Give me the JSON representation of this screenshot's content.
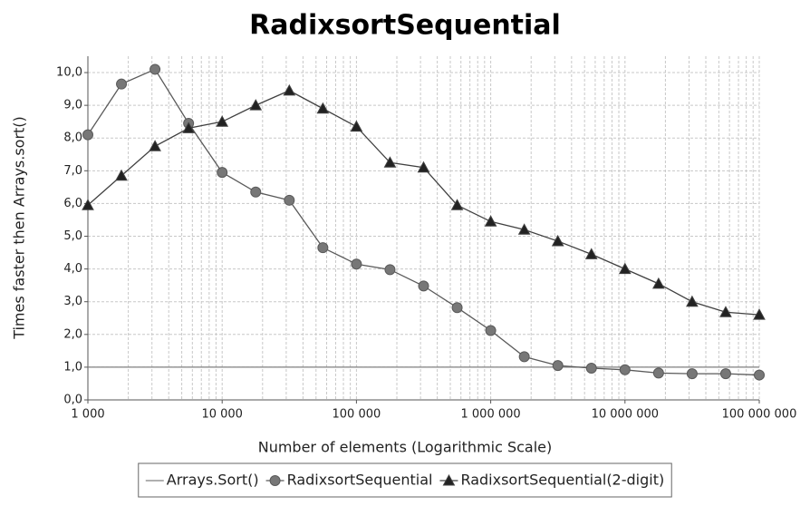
{
  "chart_data": {
    "type": "line",
    "title": "RadixsortSequential",
    "xlabel": "Number of elements (Logarithmic Scale)",
    "ylabel": "Times faster then Arrays.sort()",
    "xscale": "log",
    "grid": true,
    "legend": "bottom",
    "x": [
      1000,
      1778,
      3162,
      5623,
      10000,
      17783,
      31623,
      56234,
      100000,
      177828,
      316228,
      562341,
      1000000,
      1778279,
      3162278,
      5623413,
      10000000,
      17782794,
      31622777,
      56234133,
      100000000
    ],
    "series": [
      {
        "name": "Arrays.Sort()",
        "color": "#808080",
        "marker": "none",
        "values": [
          1,
          1,
          1,
          1,
          1,
          1,
          1,
          1,
          1,
          1,
          1,
          1,
          1,
          1,
          1,
          1,
          1,
          1,
          1,
          1,
          1
        ]
      },
      {
        "name": "RadixsortSequential",
        "color": "#5a5a5a",
        "marker": "circle",
        "values": [
          8.1,
          9.65,
          10.1,
          8.45,
          6.95,
          6.35,
          6.1,
          4.65,
          4.15,
          3.98,
          3.48,
          2.82,
          2.12,
          1.32,
          1.05,
          0.97,
          0.92,
          0.82,
          0.8,
          0.8,
          0.76
        ]
      },
      {
        "name": "RadixsortSequential(2-digit)",
        "color": "#404040",
        "marker": "triangle",
        "values": [
          5.95,
          6.85,
          7.75,
          8.3,
          8.5,
          9.0,
          9.45,
          8.9,
          8.35,
          7.25,
          7.1,
          5.95,
          5.45,
          5.2,
          4.85,
          4.45,
          4.0,
          3.55,
          3.0,
          2.68,
          2.6
        ]
      }
    ],
    "xlim": [
      1000,
      100000000
    ],
    "xticks": [
      {
        "value": 1000,
        "label": "1 000"
      },
      {
        "value": 10000,
        "label": "10 000"
      },
      {
        "value": 100000,
        "label": "100 000"
      },
      {
        "value": 1000000,
        "label": "1 000 000"
      },
      {
        "value": 10000000,
        "label": "10 000 000"
      },
      {
        "value": 100000000,
        "label": "100 000 000"
      }
    ],
    "ylim": [
      0,
      10.5
    ],
    "yticks": [
      {
        "value": 0,
        "label": "0,0"
      },
      {
        "value": 1,
        "label": "1,0"
      },
      {
        "value": 2,
        "label": "2,0"
      },
      {
        "value": 3,
        "label": "3,0"
      },
      {
        "value": 4,
        "label": "4,0"
      },
      {
        "value": 5,
        "label": "5,0"
      },
      {
        "value": 6,
        "label": "6,0"
      },
      {
        "value": 7,
        "label": "7,0"
      },
      {
        "value": 8,
        "label": "8,0"
      },
      {
        "value": 9,
        "label": "9,0"
      },
      {
        "value": 10,
        "label": "10,0"
      }
    ]
  }
}
